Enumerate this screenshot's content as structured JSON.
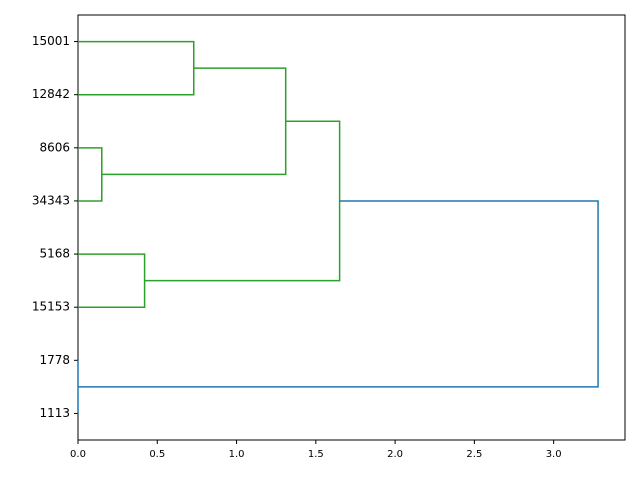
{
  "chart_data": {
    "type": "dendrogram",
    "orientation": "right",
    "leaves": [
      "15001",
      "12842",
      "8606",
      "34343",
      "5168",
      "15153",
      "1778",
      "1113"
    ],
    "links": [
      {
        "children": [
          0,
          1
        ],
        "height": 0.73,
        "color": "#2ca02c"
      },
      {
        "children": [
          2,
          3
        ],
        "height": 0.15,
        "color": "#2ca02c"
      },
      {
        "children": [
          4,
          5
        ],
        "height": 0.42,
        "color": "#2ca02c"
      },
      {
        "children": [
          6,
          7
        ],
        "height": 0,
        "color": "#1f77b4"
      },
      {
        "children": [
          8,
          9
        ],
        "height": 1.31,
        "color": "#2ca02c"
      },
      {
        "children": [
          12,
          10
        ],
        "height": 1.65,
        "color": "#2ca02c"
      },
      {
        "children": [
          13,
          11
        ],
        "height": 3.28,
        "color": "#1f77b4"
      }
    ],
    "xlim": [
      0,
      3.45
    ],
    "xticks": [
      {
        "value": 0,
        "label": "0.0"
      },
      0.5,
      {
        "value": 1,
        "label": "1.0"
      },
      1.5,
      {
        "value": 2,
        "label": "2.0"
      },
      2.5,
      {
        "value": 3,
        "label": "3.0"
      }
    ]
  }
}
